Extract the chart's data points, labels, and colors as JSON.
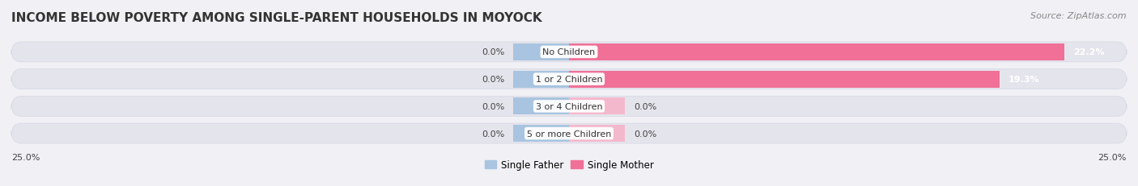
{
  "title": "INCOME BELOW POVERTY AMONG SINGLE-PARENT HOUSEHOLDS IN MOYOCK",
  "source": "Source: ZipAtlas.com",
  "categories": [
    "No Children",
    "1 or 2 Children",
    "3 or 4 Children",
    "5 or more Children"
  ],
  "single_father": [
    0.0,
    0.0,
    0.0,
    0.0
  ],
  "single_mother": [
    22.2,
    19.3,
    0.0,
    0.0
  ],
  "father_color": "#a8c4e0",
  "mother_color_strong": "#f07098",
  "mother_color_weak": "#f4b8cc",
  "background_color": "#f0f0f5",
  "bar_bg_color": "#e4e4ec",
  "bar_bg_edge_color": "#d8d8e4",
  "xlim_left": -25.0,
  "xlim_right": 25.0,
  "x_left_label": "25.0%",
  "x_right_label": "25.0%",
  "title_fontsize": 11,
  "source_fontsize": 8,
  "value_fontsize": 8,
  "category_fontsize": 8,
  "legend_fontsize": 8.5,
  "bar_height": 0.62,
  "father_stub": 2.5,
  "mother_stub": 2.5
}
